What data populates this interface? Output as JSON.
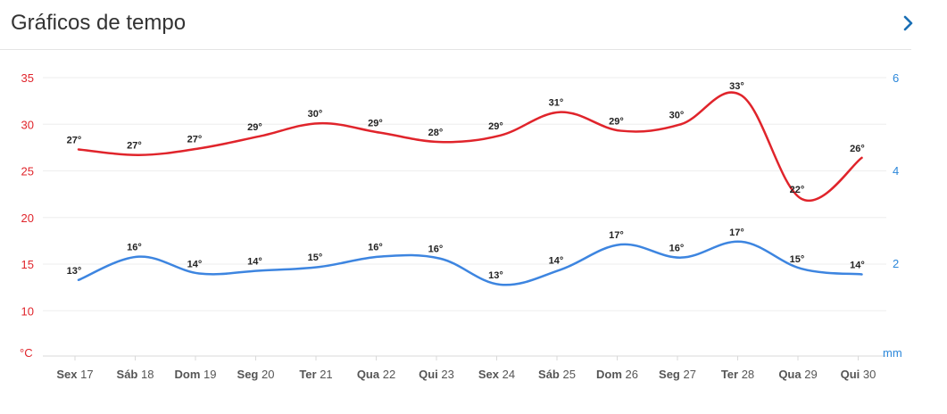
{
  "header": {
    "title": "Gráficos de tempo",
    "next_icon": "chevron-right-icon",
    "accent_color": "#1a6fb5"
  },
  "chart_data": {
    "type": "line",
    "title": "",
    "categories": [
      {
        "day": "Sex",
        "num": "17"
      },
      {
        "day": "Sáb",
        "num": "18"
      },
      {
        "day": "Dom",
        "num": "19"
      },
      {
        "day": "Seg",
        "num": "20"
      },
      {
        "day": "Ter",
        "num": "21"
      },
      {
        "day": "Qua",
        "num": "22"
      },
      {
        "day": "Qui",
        "num": "23"
      },
      {
        "day": "Sex",
        "num": "24"
      },
      {
        "day": "Sáb",
        "num": "25"
      },
      {
        "day": "Dom",
        "num": "26"
      },
      {
        "day": "Seg",
        "num": "27"
      },
      {
        "day": "Ter",
        "num": "28"
      },
      {
        "day": "Qua",
        "num": "29"
      },
      {
        "day": "Qui",
        "num": "30"
      }
    ],
    "y_left": {
      "unit": "°C",
      "ticks": [
        "35",
        "30",
        "25",
        "20",
        "15",
        "10"
      ],
      "ylim": [
        5,
        35
      ],
      "color": "#e0242b"
    },
    "y_right": {
      "unit": "mm",
      "ticks": [
        "6",
        "4",
        "2"
      ],
      "color": "#2b87da"
    },
    "grid": true,
    "series": [
      {
        "color": "#e0242b",
        "values": [
          27.3,
          26.7,
          27.4,
          28.7,
          30.1,
          29.1,
          28.1,
          28.8,
          31.3,
          29.3,
          30.0,
          33.1,
          22.0,
          26.4
        ],
        "labels": [
          "27°",
          "27°",
          "27°",
          "29°",
          "30°",
          "29°",
          "28°",
          "29°",
          "31°",
          "29°",
          "30°",
          "33°",
          "22°",
          "26°"
        ]
      },
      {
        "color": "#3d85e0",
        "values": [
          13.3,
          15.8,
          14.0,
          14.3,
          14.7,
          15.8,
          15.6,
          12.8,
          14.4,
          17.1,
          15.7,
          17.4,
          14.5,
          13.9
        ],
        "labels": [
          "13°",
          "16°",
          "14°",
          "14°",
          "15°",
          "16°",
          "16°",
          "13°",
          "14°",
          "17°",
          "16°",
          "17°",
          "15°",
          "14°"
        ]
      }
    ]
  }
}
